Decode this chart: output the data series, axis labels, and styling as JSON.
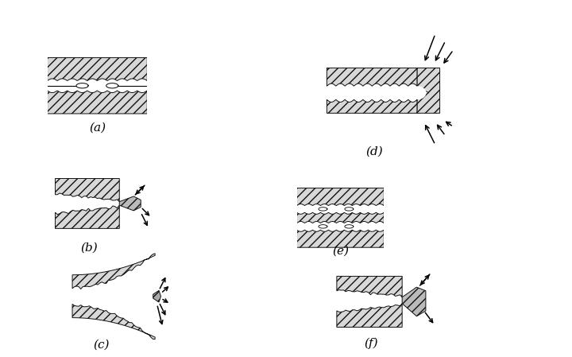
{
  "bg_color": "#ffffff",
  "hatch_color": "#111111",
  "fc": "#d8d8d8",
  "label_fontsize": 11,
  "labels": [
    "(a)",
    "(b)",
    "(c)",
    "(d)",
    "(e)",
    "(f)"
  ],
  "fig_width": 7.2,
  "fig_height": 4.49,
  "dpi": 100
}
